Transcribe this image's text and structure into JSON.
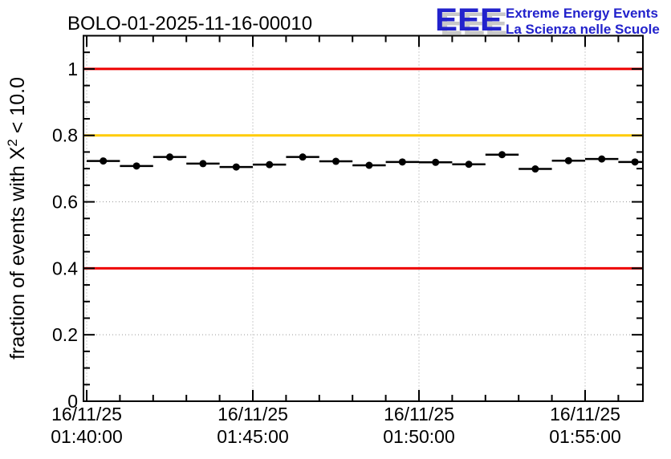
{
  "header": {
    "title": "BOLO-01-2025-11-16-00010",
    "logo": {
      "acronym": "EEE",
      "line1": "Extreme Energy Events",
      "line2": "La Scienza nelle Scuole",
      "text_color": "#2222cc",
      "shadow_color": "#c8c8c8"
    }
  },
  "chart_data": {
    "type": "scatter",
    "title": "BOLO-01-2025-11-16-00010",
    "xlabel": "",
    "ylabel": "fraction of events with X^2 < 10.0",
    "ylabel_parts": {
      "pre": "fraction of events with X",
      "sup": "2",
      "post": " < 10.0"
    },
    "ylim": [
      0,
      1.1
    ],
    "y_major_ticks": [
      0,
      0.2,
      0.4,
      0.6,
      0.8,
      1.0
    ],
    "y_tick_labels": [
      "0",
      "0.2",
      "0.4",
      "0.6",
      "0.8",
      "1"
    ],
    "y_minor_step": 0.05,
    "x_axis": {
      "unit": "time",
      "range_seconds": [
        -6,
        1004
      ],
      "minor_step_seconds": 60,
      "major_ticks": [
        {
          "seconds": 0,
          "line1": "16/11/25",
          "line2": "01:40:00"
        },
        {
          "seconds": 300,
          "line1": "16/11/25",
          "line2": "01:45:00"
        },
        {
          "seconds": 600,
          "line1": "16/11/25",
          "line2": "01:50:00"
        },
        {
          "seconds": 900,
          "line1": "16/11/25",
          "line2": "01:55:00"
        }
      ]
    },
    "grid": true,
    "legend": false,
    "bin_width_seconds": 60,
    "marker": "filled-circle",
    "marker_color": "#000000",
    "series": [
      {
        "name": "fraction of events with chi2 < 10",
        "points": [
          {
            "t_seconds": 30,
            "time": "01:40:30",
            "y": 0.723
          },
          {
            "t_seconds": 90,
            "time": "01:41:30",
            "y": 0.708
          },
          {
            "t_seconds": 150,
            "time": "01:42:30",
            "y": 0.735
          },
          {
            "t_seconds": 210,
            "time": "01:43:30",
            "y": 0.715
          },
          {
            "t_seconds": 270,
            "time": "01:44:30",
            "y": 0.705
          },
          {
            "t_seconds": 330,
            "time": "01:45:30",
            "y": 0.712
          },
          {
            "t_seconds": 390,
            "time": "01:46:30",
            "y": 0.735
          },
          {
            "t_seconds": 450,
            "time": "01:47:30",
            "y": 0.722
          },
          {
            "t_seconds": 510,
            "time": "01:48:30",
            "y": 0.71
          },
          {
            "t_seconds": 570,
            "time": "01:49:30",
            "y": 0.72
          },
          {
            "t_seconds": 630,
            "time": "01:50:30",
            "y": 0.719
          },
          {
            "t_seconds": 690,
            "time": "01:51:30",
            "y": 0.713
          },
          {
            "t_seconds": 750,
            "time": "01:52:30",
            "y": 0.742
          },
          {
            "t_seconds": 810,
            "time": "01:53:30",
            "y": 0.699
          },
          {
            "t_seconds": 870,
            "time": "01:54:30",
            "y": 0.724
          },
          {
            "t_seconds": 930,
            "time": "01:55:30",
            "y": 0.729
          },
          {
            "t_seconds": 990,
            "time": "01:56:30",
            "y": 0.72
          }
        ]
      }
    ],
    "reference_lines": [
      {
        "y": 1.0,
        "color": "#ee0000"
      },
      {
        "y": 0.8,
        "color": "#ffcc00"
      },
      {
        "y": 0.4,
        "color": "#ee0000"
      }
    ],
    "colors": {
      "axis": "#000000",
      "grid": "#999999",
      "marker": "#000000"
    }
  }
}
